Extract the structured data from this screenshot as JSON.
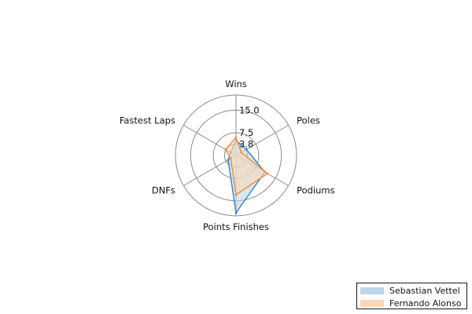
{
  "chart_data": {
    "type": "radar",
    "axes": [
      "Wins",
      "Poles",
      "Podiums",
      "Points Finishes",
      "DNFs",
      "Fastest Laps"
    ],
    "rmax": 20,
    "tick_values": [
      3.8,
      7.5,
      15.0
    ],
    "tick_labels": [
      "3.8",
      "7.5",
      "15.0"
    ],
    "grid": true,
    "series": [
      {
        "name": "Sebastian Vettel",
        "values": [
          5,
          4,
          11,
          19,
          3,
          2
        ],
        "stroke": "#2a7dc4",
        "fill": "#bcd6ea"
      },
      {
        "name": "Fernando Alonso",
        "values": [
          6,
          2,
          12,
          13,
          2,
          4
        ],
        "stroke": "#f08a2c",
        "fill": "#fbd7b8"
      }
    ],
    "legend_position": "bottom-right"
  }
}
